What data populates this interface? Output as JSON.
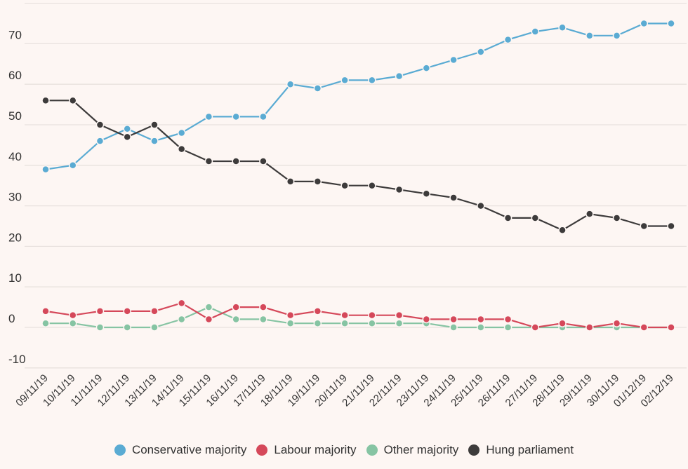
{
  "chart_data": {
    "type": "line",
    "title": "",
    "xlabel": "",
    "ylabel": "",
    "ylim": [
      -10,
      80
    ],
    "yticks": [
      -10,
      0,
      10,
      20,
      30,
      40,
      50,
      60,
      70
    ],
    "grid": true,
    "legend_position": "bottom",
    "categories": [
      "09/11/19",
      "10/11/19",
      "11/11/19",
      "12/11/19",
      "13/11/19",
      "14/11/19",
      "15/11/19",
      "16/11/19",
      "17/11/19",
      "18/11/19",
      "19/11/19",
      "20/11/19",
      "21/11/19",
      "22/11/19",
      "23/11/19",
      "24/11/19",
      "25/11/19",
      "26/11/19",
      "27/11/19",
      "28/11/19",
      "29/11/19",
      "30/11/19",
      "01/12/19",
      "02/12/19"
    ],
    "series": [
      {
        "name": "Conservative majority",
        "color": "#5aabd3",
        "values": [
          39,
          40,
          46,
          49,
          46,
          48,
          52,
          52,
          52,
          60,
          59,
          61,
          61,
          62,
          64,
          66,
          68,
          71,
          73,
          74,
          72,
          72,
          75,
          75
        ]
      },
      {
        "name": "Labour majority",
        "color": "#d5485a",
        "values": [
          4,
          3,
          4,
          4,
          4,
          6,
          2,
          5,
          5,
          3,
          4,
          3,
          3,
          3,
          2,
          2,
          2,
          2,
          0,
          1,
          0,
          1,
          0,
          0
        ]
      },
      {
        "name": "Other majority",
        "color": "#86c4a3",
        "values": [
          1,
          1,
          0,
          0,
          0,
          2,
          5,
          2,
          2,
          1,
          1,
          1,
          1,
          1,
          1,
          0,
          0,
          0,
          0,
          0,
          0,
          0,
          0,
          0
        ]
      },
      {
        "name": "Hung parliament",
        "color": "#3d3b3b",
        "values": [
          56,
          56,
          50,
          47,
          50,
          44,
          41,
          41,
          41,
          36,
          36,
          35,
          35,
          34,
          33,
          32,
          30,
          27,
          27,
          24,
          28,
          27,
          25,
          25
        ]
      }
    ]
  }
}
